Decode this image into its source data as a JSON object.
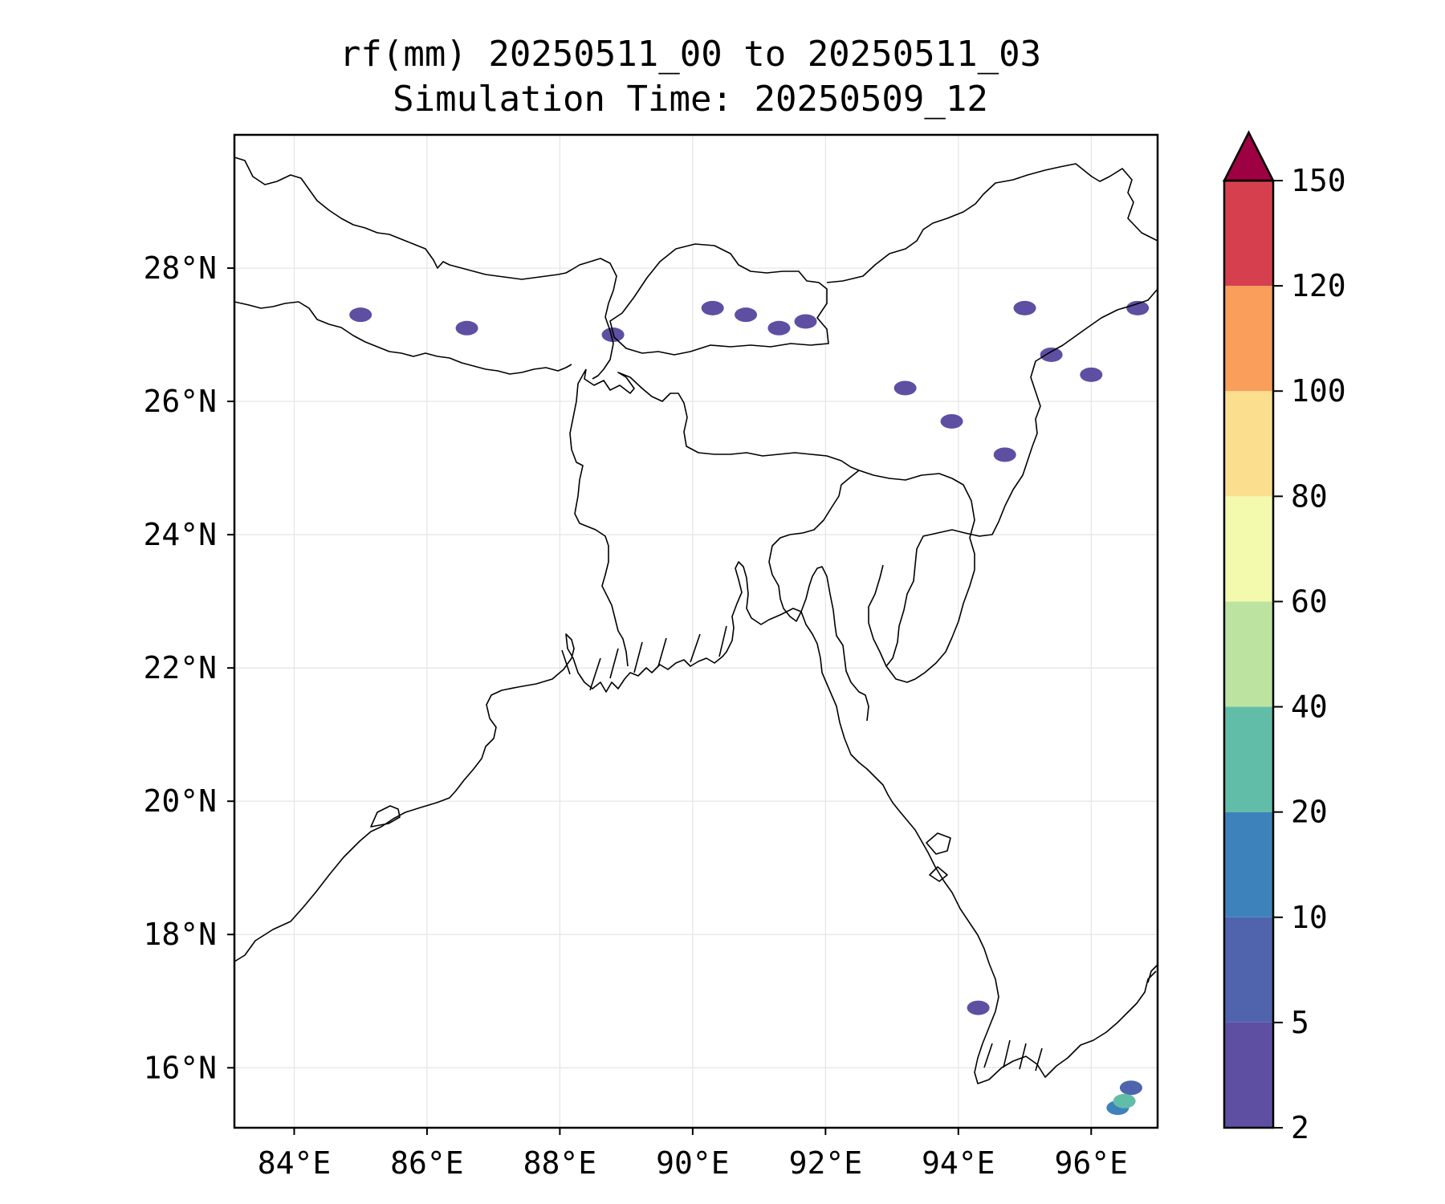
{
  "title": {
    "line1": "rf(mm) 20250511_00 to 20250511_03",
    "line2": "Simulation Time: 20250509_12"
  },
  "map": {
    "lon_range": [
      83.1,
      97.0
    ],
    "lat_range": [
      15.1,
      30.0
    ],
    "x_ticks": [
      "84°E",
      "86°E",
      "88°E",
      "90°E",
      "92°E",
      "94°E",
      "96°E"
    ],
    "x_tick_values": [
      84,
      86,
      88,
      90,
      92,
      94,
      96
    ],
    "y_ticks": [
      "28°N",
      "26°N",
      "24°N",
      "22°N",
      "20°N",
      "18°N",
      "16°N"
    ],
    "y_tick_values": [
      28,
      26,
      24,
      22,
      20,
      18,
      16
    ],
    "grid": true
  },
  "colorbar": {
    "labels": [
      "2",
      "5",
      "10",
      "20",
      "40",
      "60",
      "80",
      "100",
      "120",
      "150"
    ],
    "colors": [
      "#5e4fa2",
      "#4f64ad",
      "#3d82bb",
      "#62bda8",
      "#bce3a0",
      "#f3f9ad",
      "#fbdf8e",
      "#f99e5b",
      "#d6404e",
      "#9e0142"
    ],
    "extend": "max"
  },
  "chart_data": {
    "type": "heatmap",
    "variable": "rf(mm)",
    "levels": [
      2,
      5,
      10,
      20,
      40,
      60,
      80,
      100,
      120,
      150
    ],
    "rain_cells": [
      {
        "lon": 85.0,
        "lat": 27.3,
        "level": 2
      },
      {
        "lon": 86.6,
        "lat": 27.1,
        "level": 2
      },
      {
        "lon": 88.8,
        "lat": 27.0,
        "level": 2
      },
      {
        "lon": 90.3,
        "lat": 27.4,
        "level": 2
      },
      {
        "lon": 90.8,
        "lat": 27.3,
        "level": 2
      },
      {
        "lon": 91.3,
        "lat": 27.1,
        "level": 2
      },
      {
        "lon": 91.7,
        "lat": 27.2,
        "level": 2
      },
      {
        "lon": 93.2,
        "lat": 26.2,
        "level": 2
      },
      {
        "lon": 93.9,
        "lat": 25.7,
        "level": 2
      },
      {
        "lon": 94.7,
        "lat": 25.2,
        "level": 2
      },
      {
        "lon": 95.0,
        "lat": 27.4,
        "level": 2
      },
      {
        "lon": 95.4,
        "lat": 26.7,
        "level": 2
      },
      {
        "lon": 96.0,
        "lat": 26.4,
        "level": 2
      },
      {
        "lon": 96.7,
        "lat": 27.4,
        "level": 2
      },
      {
        "lon": 94.3,
        "lat": 16.9,
        "level": 2
      },
      {
        "lon": 96.6,
        "lat": 15.7,
        "level": 5
      },
      {
        "lon": 96.4,
        "lat": 15.4,
        "level": 10
      },
      {
        "lon": 96.5,
        "lat": 15.5,
        "level": 20
      }
    ]
  }
}
